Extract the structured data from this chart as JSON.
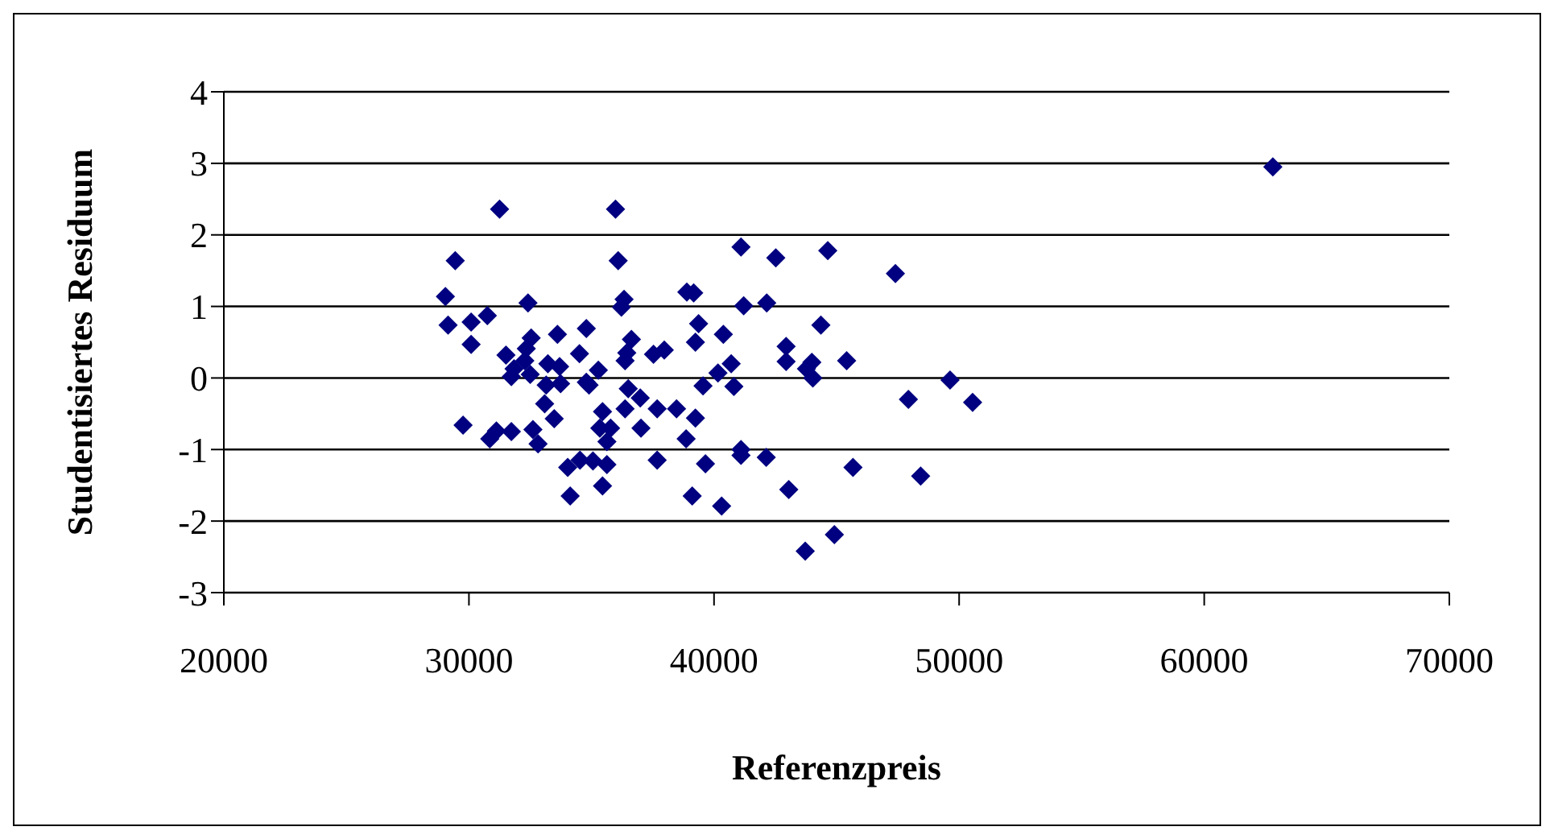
{
  "chart_data": {
    "type": "scatter",
    "xlabel": "Referenzpreis",
    "ylabel": "Studentisiertes Residuum",
    "xlim": [
      20000,
      70000
    ],
    "xticks": [
      20000,
      30000,
      40000,
      50000,
      60000,
      70000
    ],
    "ylim": [
      -3,
      4
    ],
    "yticks": [
      -3,
      -2,
      -1,
      0,
      1,
      2,
      3,
      4
    ],
    "grid": "y",
    "marker": "diamond",
    "legend": false,
    "series": [
      {
        "color": "#000080",
        "x": [
          29440,
          29040,
          29150,
          30090,
          30750,
          30090,
          29760,
          30850,
          31250,
          35980,
          36090,
          32410,
          36330,
          36220,
          38890,
          39170,
          39370,
          32540,
          33610,
          34790,
          36630,
          39240,
          40380,
          31510,
          32340,
          32280,
          31840,
          31730,
          32500,
          33220,
          33700,
          34510,
          36440,
          36370,
          37530,
          37970,
          35280,
          34790,
          34900,
          33150,
          33740,
          33090,
          33480,
          36500,
          36990,
          36370,
          37680,
          38470,
          39240,
          39550,
          40160,
          35450,
          35340,
          35780,
          35630,
          37020,
          38860,
          31120,
          31730,
          32610,
          32820,
          34030,
          34530,
          35060,
          35630,
          37680,
          39650,
          34130,
          35450,
          39110,
          40310,
          41100,
          42520,
          44640,
          47400,
          41210,
          42150,
          44360,
          42940,
          42940,
          43990,
          43770,
          44030,
          45410,
          40700,
          40810,
          49630,
          47930,
          50550,
          41100,
          41100,
          42130,
          45670,
          48430,
          43050,
          44910,
          43720,
          62800
        ],
        "values": [
          1.64,
          1.14,
          0.74,
          0.78,
          0.87,
          0.47,
          -0.66,
          -0.85,
          2.36,
          2.36,
          1.64,
          1.05,
          1.1,
          0.99,
          1.2,
          1.19,
          0.76,
          0.56,
          0.61,
          0.69,
          0.54,
          0.5,
          0.61,
          0.32,
          0.41,
          0.24,
          0.13,
          0.02,
          0.05,
          0.2,
          0.16,
          0.34,
          0.35,
          0.24,
          0.33,
          0.39,
          0.11,
          -0.06,
          -0.1,
          -0.1,
          -0.08,
          -0.36,
          -0.57,
          -0.15,
          -0.28,
          -0.43,
          -0.43,
          -0.43,
          -0.56,
          -0.11,
          0.07,
          -0.47,
          -0.7,
          -0.7,
          -0.89,
          -0.7,
          -0.85,
          -0.74,
          -0.75,
          -0.72,
          -0.92,
          -1.25,
          -1.15,
          -1.16,
          -1.21,
          -1.15,
          -1.2,
          -1.65,
          -1.51,
          -1.65,
          -1.79,
          1.83,
          1.68,
          1.78,
          1.46,
          1.01,
          1.05,
          0.74,
          0.44,
          0.23,
          0.22,
          0.13,
          0,
          0.24,
          0.2,
          -0.12,
          -0.03,
          -0.3,
          -0.34,
          -1.0,
          -1.08,
          -1.11,
          -1.25,
          -1.37,
          -1.56,
          -2.19,
          -2.42,
          2.95
        ]
      }
    ]
  }
}
